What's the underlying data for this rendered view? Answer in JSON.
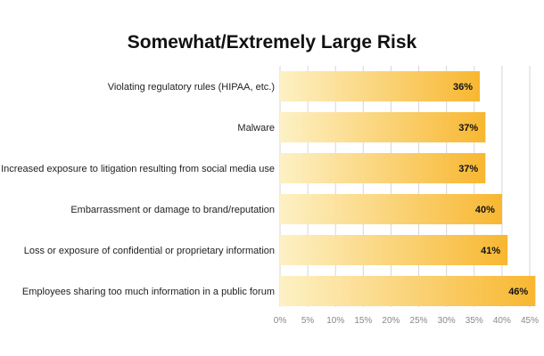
{
  "chart_data": {
    "type": "bar",
    "orientation": "horizontal",
    "title": "Somewhat/Extremely Large Risk",
    "categories": [
      "Violating regulatory rules (HIPAA, etc.)",
      "Malware",
      "Increased exposure to litigation resulting from social media use",
      "Embarrassment or damage to brand/reputation",
      "Loss or exposure of confidential or proprietary information",
      "Employees sharing too much information in a public forum"
    ],
    "values": [
      36,
      37,
      37,
      40,
      41,
      46
    ],
    "value_labels": [
      "36%",
      "37%",
      "37%",
      "40%",
      "41%",
      "46%"
    ],
    "xlim": [
      0,
      45
    ],
    "x_ticks": [
      0,
      5,
      10,
      15,
      20,
      25,
      30,
      35,
      40,
      45
    ],
    "x_tick_labels": [
      "0%",
      "5%",
      "10%",
      "15%",
      "20%",
      "25%",
      "30%",
      "35%",
      "40%",
      "45%"
    ],
    "grid": "vertical",
    "bar_color_start": "#fdf1c4",
    "bar_color_end": "#f8b731",
    "grid_color": "#d6d6d6"
  }
}
